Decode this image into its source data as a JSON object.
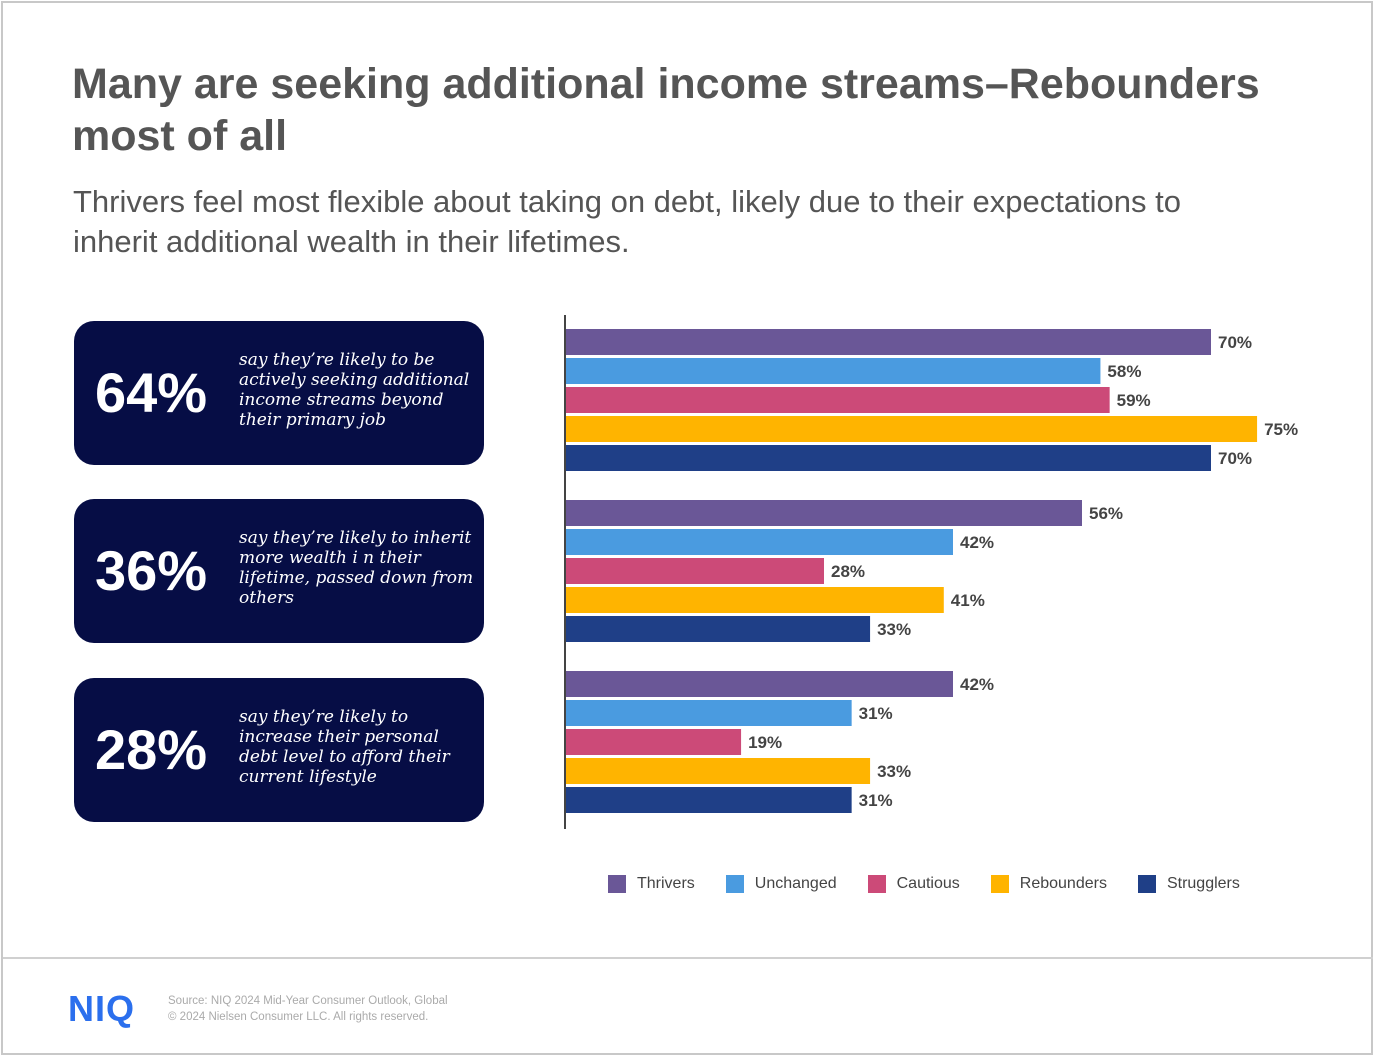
{
  "title": "Many are seeking additional income streams–Rebounders most of all",
  "subtitle": "Thrivers feel most flexible about taking on debt, likely due to their expectations to inherit additional wealth in their lifetimes.",
  "callouts": [
    {
      "value": "64%",
      "text": "say they’re likely to be actively seeking additional income streams beyond their primary job"
    },
    {
      "value": "36%",
      "text": "say they’re likely to inherit more wealth i n their lifetime, passed down from others"
    },
    {
      "value": "28%",
      "text": "say they’re likely to increase their personal debt level to afford their current lifestyle"
    }
  ],
  "chart_data": {
    "type": "bar",
    "orientation": "horizontal",
    "categories": [
      "actively seeking additional income streams",
      "inherit more wealth",
      "increase personal debt level"
    ],
    "series": [
      {
        "name": "Thrivers",
        "color": "#6a5797",
        "values": [
          70,
          56,
          42
        ]
      },
      {
        "name": "Unchanged",
        "color": "#4a9be0",
        "values": [
          58,
          42,
          31
        ]
      },
      {
        "name": "Cautious",
        "color": "#cc4a78",
        "values": [
          59,
          28,
          19
        ]
      },
      {
        "name": "Rebounders",
        "color": "#ffb400",
        "values": [
          75,
          41,
          33
        ]
      },
      {
        "name": "Strugglers",
        "color": "#1f3f87",
        "values": [
          70,
          33,
          31
        ]
      }
    ],
    "value_suffix": "%",
    "xlim": [
      0,
      100
    ],
    "legend": "bottom",
    "grid": false
  },
  "footer": {
    "logo": "NIQ",
    "source": "Source: NIQ 2024 Mid-Year Consumer Outlook, Global",
    "copyright": "© 2024 Nielsen Consumer LLC. All rights reserved."
  }
}
